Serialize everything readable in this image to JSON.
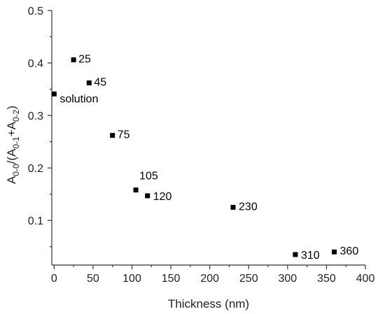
{
  "chart_data": {
    "type": "scatter",
    "xlabel": "Thickness (nm)",
    "ylabel": {
      "parts": [
        {
          "text": "A",
          "sub": false
        },
        {
          "text": "0-0",
          "sub": true
        },
        {
          "text": "/(A",
          "sub": false
        },
        {
          "text": "0-1",
          "sub": true
        },
        {
          "text": "+A",
          "sub": false
        },
        {
          "text": "0-2",
          "sub": true
        },
        {
          "text": ")",
          "sub": false
        }
      ]
    },
    "xlim": [
      -3,
      400
    ],
    "ylim": [
      0.015,
      0.5
    ],
    "xticks": [
      0,
      50,
      100,
      150,
      200,
      250,
      300,
      350,
      400
    ],
    "xtick_labels": [
      "0",
      "50",
      "100",
      "150",
      "200",
      "250",
      "300",
      "350",
      "400"
    ],
    "yticks": [
      0.1,
      0.2,
      0.3,
      0.4,
      0.5
    ],
    "ytick_labels": [
      "0.1",
      "0.2",
      "0.3",
      "0.4",
      "0.5"
    ],
    "grid": false,
    "marker_color": "#000000",
    "points": [
      {
        "x": 0,
        "y": 0.341,
        "label": "solution"
      },
      {
        "x": 25,
        "y": 0.406,
        "label": "25"
      },
      {
        "x": 45,
        "y": 0.362,
        "label": "45"
      },
      {
        "x": 75,
        "y": 0.262,
        "label": "75"
      },
      {
        "x": 105,
        "y": 0.158,
        "label": "105"
      },
      {
        "x": 120,
        "y": 0.147,
        "label": "120"
      },
      {
        "x": 230,
        "y": 0.125,
        "label": "230"
      },
      {
        "x": 310,
        "y": 0.035,
        "label": "310"
      },
      {
        "x": 360,
        "y": 0.04,
        "label": "360"
      }
    ]
  }
}
